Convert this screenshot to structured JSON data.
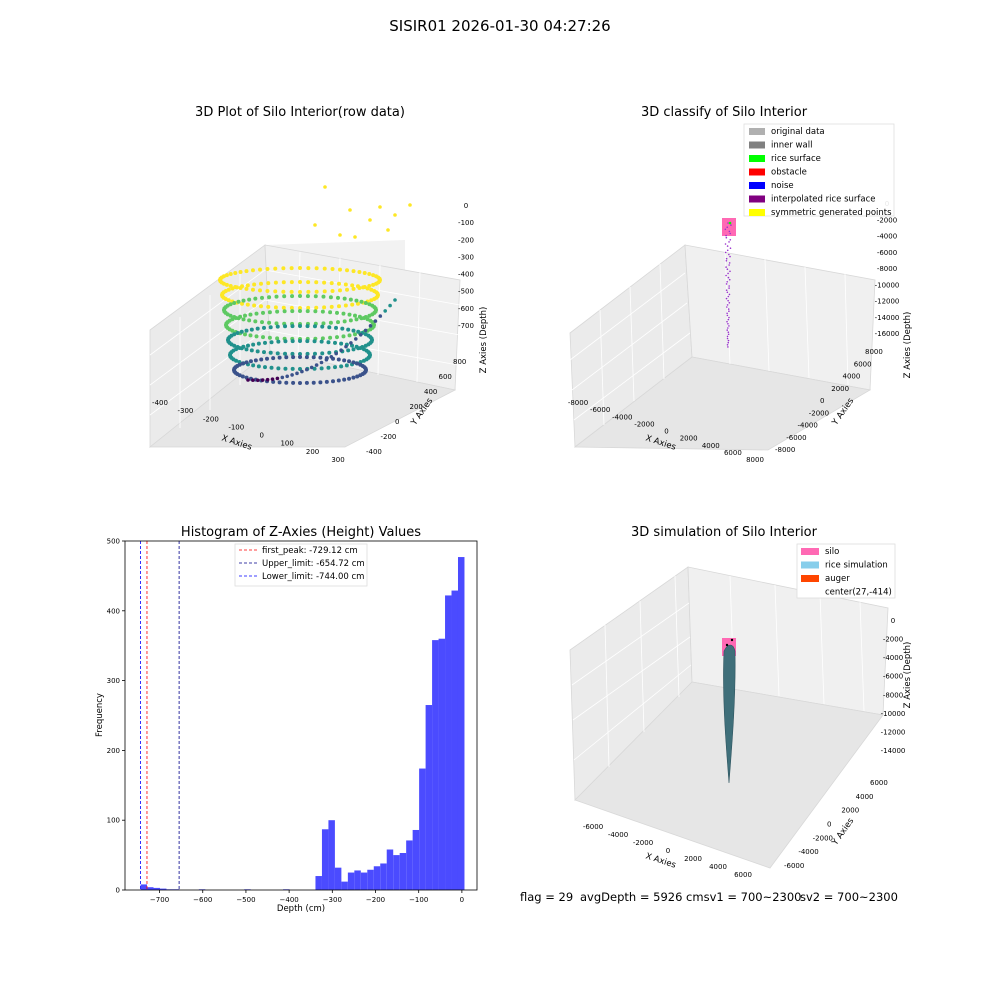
{
  "suptitle": "SISIR01 2026-01-30 04:27:26",
  "chart_data": [
    {
      "type": "scatter",
      "title": "3D Plot of Silo Interior(row data)",
      "xlabel": "X Axies",
      "ylabel": "Y Axies",
      "zlabel": "Z Axies (Depth)",
      "xticks": [
        "-400",
        "-300",
        "-200",
        "-100",
        "0",
        "100",
        "200",
        "300"
      ],
      "yticks": [
        "-400",
        "-200",
        "0",
        "200",
        "400",
        "600",
        "800"
      ],
      "zticks": [
        "0",
        "-100",
        "-200",
        "-300",
        "-400",
        "-500",
        "-600",
        "-700"
      ],
      "colormap": "viridis",
      "colors": [
        "#440154",
        "#3b528b",
        "#21918c",
        "#5ec962",
        "#fde725"
      ]
    },
    {
      "type": "scatter",
      "title": "3D classify of Silo Interior",
      "xlabel": "X Axies",
      "ylabel": "Y Axies",
      "zlabel": "Z Axies (Depth)",
      "xticks": [
        "-8000",
        "-6000",
        "-4000",
        "-2000",
        "0",
        "2000",
        "4000",
        "6000",
        "8000"
      ],
      "yticks": [
        "-8000",
        "-6000",
        "-4000",
        "-2000",
        "0",
        "2000",
        "4000",
        "6000",
        "8000"
      ],
      "zticks": [
        "0",
        "-2000",
        "-4000",
        "-6000",
        "-8000",
        "-10000",
        "-12000",
        "-14000",
        "-16000"
      ],
      "legend": [
        {
          "label": "original data",
          "color": "#b0b0b0"
        },
        {
          "label": "inner wall",
          "color": "#808080"
        },
        {
          "label": "rice surface",
          "color": "#00ff00"
        },
        {
          "label": "obstacle",
          "color": "#ff0000"
        },
        {
          "label": "noise",
          "color": "#0000ff"
        },
        {
          "label": "interpolated rice surface",
          "color": "#800080"
        },
        {
          "label": "symmetric generated points",
          "color": "#ffff00"
        }
      ],
      "legend_position": "upper right"
    },
    {
      "type": "bar",
      "title": "Histogram of Z-Axies (Height) Values",
      "xlabel": "Depth (cm)",
      "ylabel": "Frequency",
      "xlim": [
        -780,
        35
      ],
      "ylim": [
        0,
        500
      ],
      "xticks": [
        "-700",
        "-600",
        "-500",
        "-400",
        "-300",
        "-200",
        "-100",
        "0"
      ],
      "yticks": [
        "0",
        "100",
        "200",
        "300",
        "400",
        "500"
      ],
      "bar_color": "#4b4bff",
      "bin_width": 15,
      "bins": [
        {
          "x": -744,
          "v": 8
        },
        {
          "x": -729,
          "v": 4
        },
        {
          "x": -714,
          "v": 3
        },
        {
          "x": -699,
          "v": 2
        },
        {
          "x": -684,
          "v": 1
        },
        {
          "x": -669,
          "v": 1
        },
        {
          "x": -609,
          "v": 1
        },
        {
          "x": -504,
          "v": 1
        },
        {
          "x": -414,
          "v": 1
        },
        {
          "x": -339,
          "v": 20
        },
        {
          "x": -324,
          "v": 87
        },
        {
          "x": -309,
          "v": 100
        },
        {
          "x": -294,
          "v": 32
        },
        {
          "x": -279,
          "v": 12
        },
        {
          "x": -264,
          "v": 25
        },
        {
          "x": -249,
          "v": 28
        },
        {
          "x": -234,
          "v": 25
        },
        {
          "x": -219,
          "v": 29
        },
        {
          "x": -204,
          "v": 34
        },
        {
          "x": -189,
          "v": 38
        },
        {
          "x": -174,
          "v": 58
        },
        {
          "x": -159,
          "v": 50
        },
        {
          "x": -144,
          "v": 53
        },
        {
          "x": -129,
          "v": 71
        },
        {
          "x": -114,
          "v": 86
        },
        {
          "x": -99,
          "v": 174
        },
        {
          "x": -84,
          "v": 265
        },
        {
          "x": -69,
          "v": 358
        },
        {
          "x": -54,
          "v": 360
        },
        {
          "x": -39,
          "v": 422
        },
        {
          "x": -24,
          "v": 429
        },
        {
          "x": -9,
          "v": 477
        }
      ],
      "vlines": [
        {
          "label": "first_peak: -729.12 cm",
          "x": -729.12,
          "color": "#ff0000"
        },
        {
          "label": "Upper_limit: -654.72 cm",
          "x": -654.72,
          "color": "#00008b"
        },
        {
          "label": "Lower_limit: -744.00 cm",
          "x": -744.0,
          "color": "#0000ff"
        }
      ],
      "legend_position": "upper center"
    },
    {
      "type": "surface",
      "title": "3D simulation of Silo Interior",
      "xlabel": "X Axies",
      "ylabel": "Y Axies",
      "zlabel": "Z Axies (Depth)",
      "xticks": [
        "-6000",
        "-4000",
        "-2000",
        "0",
        "2000",
        "4000",
        "6000"
      ],
      "yticks": [
        "-6000",
        "-4000",
        "-2000",
        "0",
        "2000",
        "4000",
        "6000"
      ],
      "zticks": [
        "0",
        "-2000",
        "-4000",
        "-6000",
        "-8000",
        "-10000",
        "-12000",
        "-14000"
      ],
      "legend": [
        {
          "label": "silo",
          "color": "#ff69b4"
        },
        {
          "label": "rice simulation",
          "color": "#87ceeb"
        },
        {
          "label": "auger",
          "color": "#ff4500"
        },
        {
          "label": "center(27,-414)",
          "color": ""
        }
      ],
      "legend_position": "upper right"
    }
  ],
  "info": {
    "flag": "flag = 29",
    "avg": "avgDepth = 5926 cmsv1 = 700~2300",
    "sv2": "sv2 = 700~2300"
  }
}
